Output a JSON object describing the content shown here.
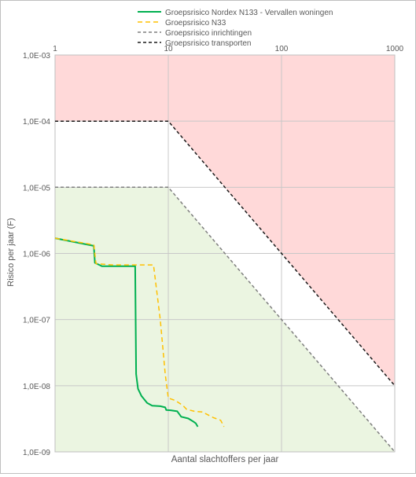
{
  "chart_data": {
    "type": "line",
    "xscale": "log",
    "yscale": "log",
    "xlim": [
      1,
      1000
    ],
    "ylim": [
      1e-09,
      0.001
    ],
    "grid": true,
    "legend_position": "top",
    "xlabel": "Aantal slachtoffers per jaar",
    "ylabel": "Risico per jaar (F)",
    "x_ticks": [
      {
        "value": 1,
        "label": "1"
      },
      {
        "value": 10,
        "label": "10"
      },
      {
        "value": 100,
        "label": "100"
      },
      {
        "value": 1000,
        "label": "1000"
      }
    ],
    "y_ticks": [
      {
        "value": 0.001,
        "label": "1,0E-03"
      },
      {
        "value": 0.0001,
        "label": "1,0E-04"
      },
      {
        "value": 1e-05,
        "label": "1,0E-05"
      },
      {
        "value": 1e-06,
        "label": "1,0E-06"
      },
      {
        "value": 1e-07,
        "label": "1,0E-07"
      },
      {
        "value": 1e-08,
        "label": "1,0E-08"
      },
      {
        "value": 1e-09,
        "label": "1,0E-09"
      }
    ],
    "regions": [
      {
        "fill": "#ffd9d9",
        "points": [
          [
            1,
            0.001
          ],
          [
            1000,
            0.001
          ],
          [
            1000,
            1e-08
          ],
          [
            10,
            0.0001
          ],
          [
            1,
            0.0001
          ]
        ]
      },
      {
        "fill": "#ebf5e1",
        "points": [
          [
            1,
            1e-05
          ],
          [
            10,
            1e-05
          ],
          [
            1000,
            1e-09
          ],
          [
            1,
            1e-09
          ]
        ]
      }
    ],
    "series": [
      {
        "name": "Groepsrisico Nordex N133 - Vervallen woningen",
        "color": "#00b050",
        "dash": "",
        "width": 2,
        "points": [
          [
            1,
            1.7e-06
          ],
          [
            2.2,
            1.3e-06
          ],
          [
            2.25,
            7.2e-07
          ],
          [
            2.6,
            6.4e-07
          ],
          [
            3.6,
            6.4e-07
          ],
          [
            5.1,
            6.4e-07
          ],
          [
            5.15,
            1e-07
          ],
          [
            5.2,
            1.5e-08
          ],
          [
            5.4,
            9e-09
          ],
          [
            5.8,
            7e-09
          ],
          [
            6.5,
            5.5e-09
          ],
          [
            7.2,
            5e-09
          ],
          [
            8.5,
            4.9e-09
          ],
          [
            9.4,
            4.7e-09
          ],
          [
            9.6,
            4.3e-09
          ],
          [
            10.5,
            4.25e-09
          ],
          [
            12,
            4.1e-09
          ],
          [
            13,
            3.4e-09
          ],
          [
            15,
            3.2e-09
          ],
          [
            16.5,
            2.9e-09
          ],
          [
            17.5,
            2.7e-09
          ],
          [
            18.2,
            2.4e-09
          ]
        ]
      },
      {
        "name": "Groepsrisico N33",
        "color": "#ffc000",
        "dash": "6,4",
        "width": 1.5,
        "points": [
          [
            1,
            1.7e-06
          ],
          [
            2.2,
            1.35e-06
          ],
          [
            2.3,
            7e-07
          ],
          [
            3.2,
            6.7e-07
          ],
          [
            5.1,
            6.7e-07
          ],
          [
            7.4,
            6.7e-07
          ],
          [
            8.5,
            1e-07
          ],
          [
            9.4,
            1.5e-08
          ],
          [
            10,
            6.5e-09
          ],
          [
            11.5,
            6e-09
          ],
          [
            13.5,
            5e-09
          ],
          [
            14.5,
            4.4e-09
          ],
          [
            17,
            4.1e-09
          ],
          [
            20,
            4e-09
          ],
          [
            25,
            3.3e-09
          ],
          [
            29,
            3e-09
          ],
          [
            31,
            2.4e-09
          ]
        ]
      },
      {
        "name": "Groepsrisico inrichtingen",
        "color": "#7f7f7f",
        "dash": "4,3",
        "width": 1.5,
        "points": [
          [
            1,
            1e-05
          ],
          [
            10,
            1e-05
          ],
          [
            1000,
            1e-09
          ]
        ]
      },
      {
        "name": "Groepsrisico transporten",
        "color": "#1a1a1a",
        "dash": "4,3",
        "width": 1.5,
        "points": [
          [
            1,
            0.0001
          ],
          [
            10,
            0.0001
          ],
          [
            1000,
            1e-08
          ]
        ]
      }
    ]
  }
}
